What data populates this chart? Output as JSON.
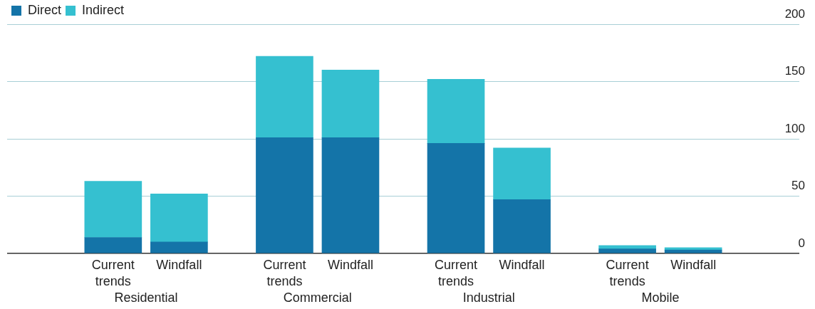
{
  "chart_data": {
    "type": "bar",
    "stacked": true,
    "categories": [
      "Current trends",
      "Windfall",
      "Current trends",
      "Windfall",
      "Current trends",
      "Windfall",
      "Current trends",
      "Windfall"
    ],
    "series": [
      {
        "name": "Direct",
        "color": "#1474a8",
        "values": [
          14,
          10,
          101,
          101,
          96,
          47,
          4,
          3
        ]
      },
      {
        "name": "Indirect",
        "color": "#35c0d0",
        "values": [
          49,
          42,
          71,
          59,
          56,
          45,
          3,
          2
        ]
      }
    ],
    "ylim": [
      0,
      200
    ],
    "yticks": [
      0,
      50,
      100,
      150,
      200
    ],
    "grid": "y",
    "legend": "top left",
    "annotations": [
      "Residential",
      "Commercial",
      "Industrial",
      "Mobile"
    ]
  }
}
